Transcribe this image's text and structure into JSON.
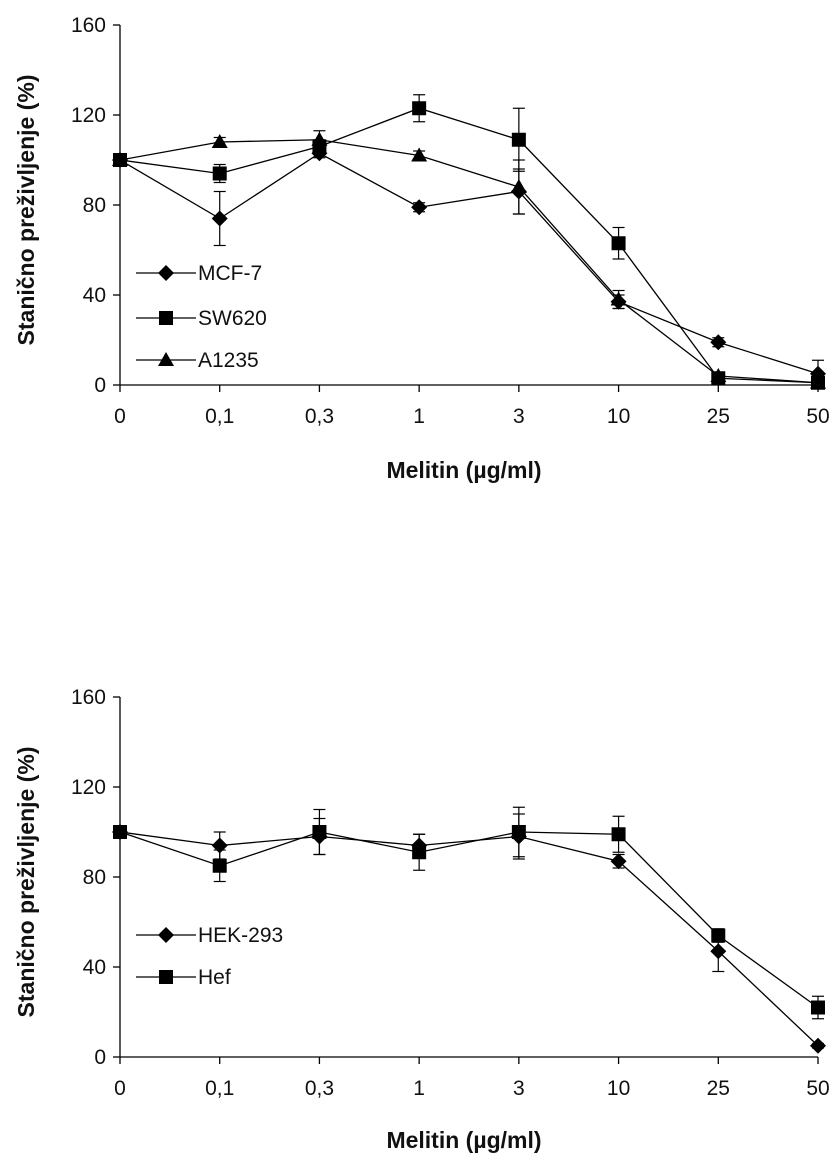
{
  "chart_data": [
    {
      "type": "line",
      "title": "",
      "xlabel": "Melitin (µg/ml)",
      "ylabel": "Stanično preživljenje (%)",
      "categories": [
        "0",
        "0,1",
        "0,3",
        "1",
        "3",
        "10",
        "25",
        "50"
      ],
      "ylim": [
        0,
        160
      ],
      "yticks": [
        0,
        40,
        80,
        120,
        160
      ],
      "grid": false,
      "legend_position": "bottom-left",
      "series": [
        {
          "name": "MCF-7",
          "marker": "diamond",
          "values": [
            100,
            74,
            103,
            79,
            86,
            37,
            19,
            5
          ],
          "errors": [
            0,
            12,
            2,
            2,
            10,
            3,
            2,
            6
          ]
        },
        {
          "name": "SW620",
          "marker": "square",
          "values": [
            100,
            94,
            106,
            123,
            109,
            63,
            3,
            1
          ],
          "errors": [
            0,
            4,
            3,
            6,
            14,
            7,
            2,
            1
          ]
        },
        {
          "name": "A1235",
          "marker": "triangle",
          "values": [
            100,
            108,
            109,
            102,
            88,
            38,
            4,
            1
          ],
          "errors": [
            0,
            2,
            4,
            2,
            12,
            4,
            1,
            1
          ]
        }
      ]
    },
    {
      "type": "line",
      "title": "",
      "xlabel": "Melitin (µg/ml)",
      "ylabel": "Stanično preživljenje (%)",
      "categories": [
        "0",
        "0,1",
        "0,3",
        "1",
        "3",
        "10",
        "25",
        "50"
      ],
      "ylim": [
        0,
        160
      ],
      "yticks": [
        0,
        40,
        80,
        120,
        160
      ],
      "grid": false,
      "legend_position": "bottom-left",
      "series": [
        {
          "name": "HEK-293",
          "marker": "diamond",
          "values": [
            100,
            94,
            98,
            94,
            98,
            87,
            47,
            5
          ],
          "errors": [
            0,
            6,
            8,
            5,
            10,
            3,
            9,
            1
          ]
        },
        {
          "name": "Hef",
          "marker": "square",
          "values": [
            100,
            85,
            100,
            91,
            100,
            99,
            54,
            22
          ],
          "errors": [
            0,
            7,
            10,
            8,
            11,
            8,
            3,
            5
          ]
        }
      ]
    }
  ]
}
